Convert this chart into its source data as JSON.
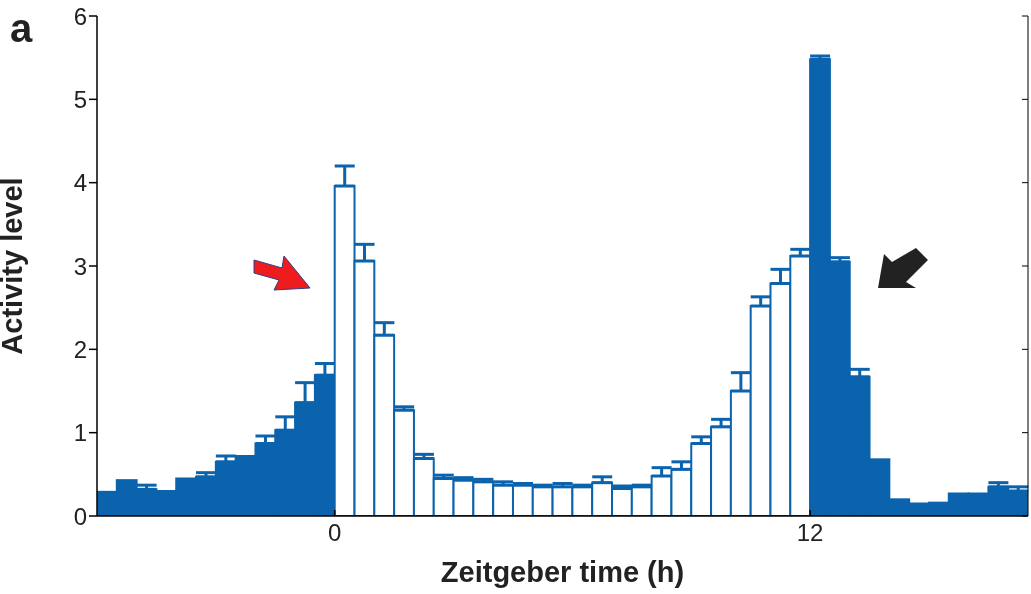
{
  "chart_data": {
    "type": "histogram",
    "title": "a",
    "xlabel": "Zeitgeber time (h)",
    "ylabel": "Activity level",
    "bins": [
      -6,
      -5.5,
      -5,
      -4.5,
      -4,
      -3.5,
      -3,
      -2.5,
      -2,
      -1.5,
      -1,
      -0.5,
      0,
      0.5,
      1,
      1.5,
      2,
      2.5,
      3,
      3.5,
      4,
      4.5,
      5,
      5.5,
      6,
      6.5,
      7,
      7.5,
      8,
      8.5,
      9,
      9.5,
      10,
      10.5,
      11,
      11.5,
      12,
      12.5,
      13,
      13.5,
      14,
      14.5,
      15,
      15.5,
      16,
      16.5,
      17,
      17.5
    ],
    "values": [
      0.29,
      0.43,
      0.32,
      0.3,
      0.45,
      0.47,
      0.65,
      0.72,
      0.87,
      1.03,
      1.36,
      1.69,
      3.96,
      3.06,
      2.17,
      1.27,
      0.69,
      0.45,
      0.43,
      0.41,
      0.37,
      0.37,
      0.35,
      0.35,
      0.35,
      0.4,
      0.33,
      0.35,
      0.48,
      0.56,
      0.87,
      1.07,
      1.5,
      2.52,
      2.79,
      3.12,
      5.48,
      3.05,
      1.67,
      0.68,
      0.2,
      0.15,
      0.16,
      0.27,
      0.27,
      0.35,
      0.3
    ],
    "errors": [
      null,
      null,
      [
        0.32,
        0.37
      ],
      null,
      null,
      [
        0.47,
        0.52
      ],
      [
        0.65,
        0.72
      ],
      null,
      [
        0.87,
        0.96
      ],
      [
        1.03,
        1.19
      ],
      [
        1.36,
        1.6
      ],
      [
        1.69,
        1.83
      ],
      [
        3.96,
        4.2
      ],
      [
        3.06,
        3.26
      ],
      [
        2.17,
        2.32
      ],
      [
        1.27,
        1.31
      ],
      [
        0.69,
        0.74
      ],
      [
        0.45,
        0.49
      ],
      [
        0.43,
        0.46
      ],
      [
        0.41,
        0.44
      ],
      [
        0.37,
        0.41
      ],
      [
        0.37,
        0.39
      ],
      [
        0.35,
        0.37
      ],
      [
        0.35,
        0.39
      ],
      [
        0.35,
        0.37
      ],
      [
        0.4,
        0.47
      ],
      [
        0.33,
        0.36
      ],
      [
        0.35,
        0.37
      ],
      [
        0.48,
        0.58
      ],
      [
        0.56,
        0.65
      ],
      [
        0.87,
        0.95
      ],
      [
        1.07,
        1.16
      ],
      [
        1.5,
        1.72
      ],
      [
        2.52,
        2.63
      ],
      [
        2.79,
        2.96
      ],
      [
        3.12,
        3.2
      ],
      [
        5.48,
        5.52
      ],
      [
        3.05,
        3.1
      ],
      [
        1.67,
        1.76
      ],
      null,
      null,
      null,
      null,
      null,
      null,
      [
        0.35,
        0.4
      ],
      [
        0.3,
        0.35
      ]
    ],
    "color": "#0b63ad",
    "colors": [
      "#0b63ad",
      "#0b63ad",
      "#0b63ad",
      "#0b63ad",
      "#0b63ad",
      "#0b63ad",
      "#0b63ad",
      "#0b63ad",
      "#0b63ad",
      "#0b63ad",
      "#0b63ad",
      "#0b63ad",
      "#ffffff",
      "#ffffff",
      "#ffffff",
      "#ffffff",
      "#ffffff",
      "#ffffff",
      "#ffffff",
      "#ffffff",
      "#ffffff",
      "#ffffff",
      "#ffffff",
      "#ffffff",
      "#ffffff",
      "#ffffff",
      "#ffffff",
      "#ffffff",
      "#ffffff",
      "#ffffff",
      "#ffffff",
      "#ffffff",
      "#ffffff",
      "#ffffff",
      "#ffffff",
      "#ffffff",
      "#0b63ad",
      "#0b63ad",
      "#0b63ad",
      "#0b63ad",
      "#0b63ad",
      "#0b63ad",
      "#0b63ad",
      "#0b63ad",
      "#0b63ad",
      "#0b63ad",
      "#0b63ad"
    ],
    "xlim": [
      -6,
      17.5
    ],
    "xticks": [
      0,
      12
    ],
    "ylim": [
      0,
      6
    ],
    "yticks": [
      0,
      1,
      2,
      3,
      4,
      5,
      6
    ],
    "grid": false
  }
}
